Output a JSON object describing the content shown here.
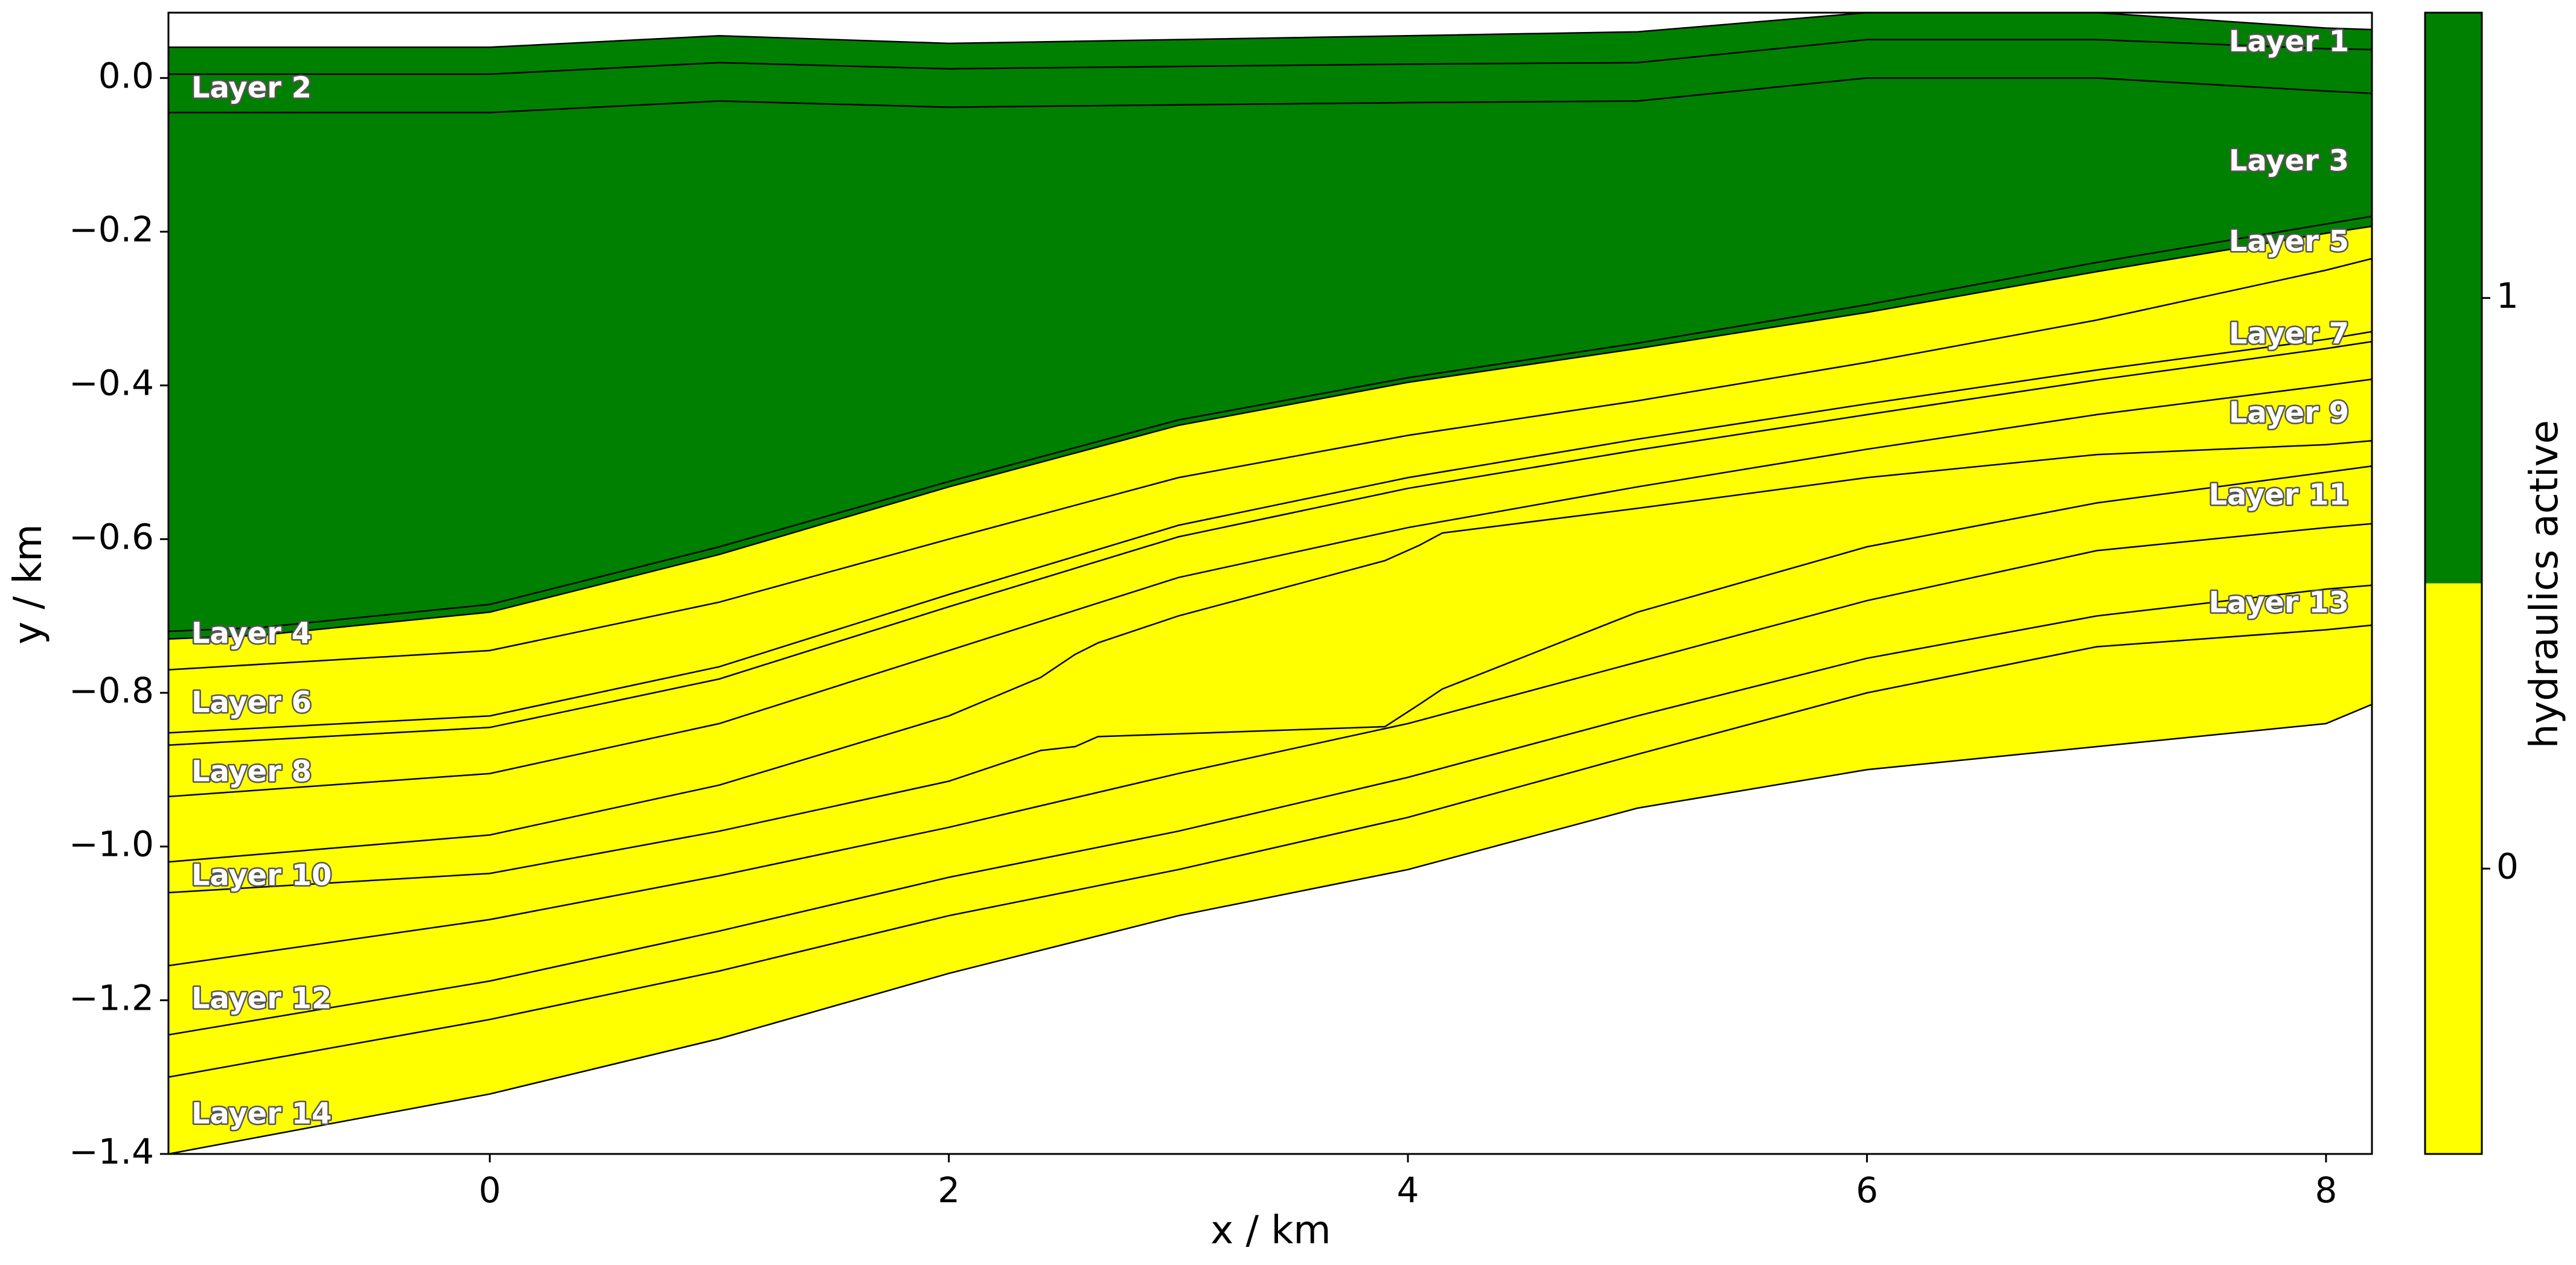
{
  "chart_data": {
    "type": "area",
    "title": "",
    "xlabel": "x / km",
    "ylabel": "y / km",
    "xlim": [
      -1.4,
      8.2
    ],
    "ylim": [
      -1.4,
      0.085
    ],
    "xticks": [
      0,
      2,
      4,
      6,
      8
    ],
    "yticks": [
      0.0,
      -0.2,
      -0.4,
      -0.6,
      -0.8,
      -1.0,
      -1.2,
      -1.4
    ],
    "xtick_labels": [
      "0",
      "2",
      "4",
      "6",
      "8"
    ],
    "ytick_labels": [
      "0.0",
      "−0.2",
      "−0.4",
      "−0.6",
      "−0.8",
      "−1.0",
      "−1.2",
      "−1.4"
    ],
    "grid": false,
    "colors": {
      "active": "#008000",
      "inactive": "#ffff00"
    },
    "colorbar": {
      "label": "hydraulics active",
      "ticks": [
        1,
        0
      ],
      "tick_labels": [
        "1",
        "0"
      ],
      "range": [
        -0.5,
        1.5
      ],
      "boundary": 0.5
    },
    "boundaries": [
      {
        "x": [
          -1.4,
          0,
          1,
          2,
          3,
          4,
          5,
          6,
          7,
          8,
          8.2
        ],
        "y": [
          0.04,
          0.04,
          0.055,
          0.045,
          0.05,
          0.055,
          0.06,
          0.085,
          0.085,
          0.065,
          0.063
        ]
      },
      {
        "x": [
          -1.4,
          0,
          1,
          2,
          3,
          4,
          5,
          6,
          7,
          8,
          8.2
        ],
        "y": [
          0.005,
          0.005,
          0.02,
          0.012,
          0.015,
          0.018,
          0.02,
          0.05,
          0.05,
          0.038,
          0.037
        ]
      },
      {
        "x": [
          -1.4,
          0,
          1,
          2,
          3,
          4,
          5,
          6,
          7,
          8,
          8.2
        ],
        "y": [
          -0.045,
          -0.045,
          -0.03,
          -0.038,
          -0.035,
          -0.032,
          -0.03,
          0.0,
          0.0,
          -0.017,
          -0.02
        ]
      },
      {
        "x": [
          -1.4,
          -1.0,
          0,
          1,
          2,
          3,
          4,
          5,
          6,
          7,
          8,
          8.2
        ],
        "y": [
          -0.72,
          -0.715,
          -0.685,
          -0.61,
          -0.525,
          -0.445,
          -0.39,
          -0.345,
          -0.295,
          -0.24,
          -0.19,
          -0.18
        ]
      },
      {
        "x": [
          -1.4,
          -1.0,
          0,
          1,
          2,
          3,
          4,
          5,
          6,
          7,
          8,
          8.2
        ],
        "y": [
          -0.73,
          -0.725,
          -0.695,
          -0.62,
          -0.532,
          -0.452,
          -0.396,
          -0.352,
          -0.305,
          -0.252,
          -0.202,
          -0.193
        ]
      },
      {
        "x": [
          -1.4,
          0,
          1,
          2,
          3,
          4,
          5,
          6,
          7,
          8,
          8.2
        ],
        "y": [
          -0.77,
          -0.745,
          -0.682,
          -0.6,
          -0.52,
          -0.465,
          -0.42,
          -0.37,
          -0.315,
          -0.25,
          -0.235
        ]
      },
      {
        "x": [
          -1.4,
          0,
          1,
          2,
          3,
          4,
          5,
          6,
          7,
          8,
          8.2
        ],
        "y": [
          -0.852,
          -0.83,
          -0.766,
          -0.672,
          -0.582,
          -0.52,
          -0.47,
          -0.424,
          -0.38,
          -0.34,
          -0.33
        ]
      },
      {
        "x": [
          -1.4,
          0,
          1,
          2,
          3,
          4,
          5,
          6,
          7,
          8,
          8.2
        ],
        "y": [
          -0.868,
          -0.845,
          -0.782,
          -0.688,
          -0.597,
          -0.534,
          -0.484,
          -0.438,
          -0.393,
          -0.352,
          -0.343
        ]
      },
      {
        "x": [
          -1.4,
          0,
          1,
          2,
          3,
          4,
          5,
          6,
          7,
          8,
          8.2
        ],
        "y": [
          -0.935,
          -0.905,
          -0.84,
          -0.745,
          -0.65,
          -0.585,
          -0.532,
          -0.483,
          -0.438,
          -0.4,
          -0.392
        ]
      },
      {
        "x": [
          -1.4,
          0,
          1,
          2,
          2.4,
          2.55,
          2.65,
          3,
          3.5,
          3.9,
          4.05,
          4.15,
          5,
          6,
          7,
          8,
          8.2
        ],
        "y": [
          -1.02,
          -0.985,
          -0.92,
          -0.83,
          -0.78,
          -0.75,
          -0.735,
          -0.7,
          -0.66,
          -0.628,
          -0.608,
          -0.592,
          -0.56,
          -0.52,
          -0.49,
          -0.477,
          -0.472
        ]
      },
      {
        "x": [
          -1.4,
          0,
          1,
          2,
          2.4,
          2.55,
          2.65,
          3.9,
          4.05,
          4.15,
          5,
          6,
          7,
          8,
          8.2
        ],
        "y": [
          -1.06,
          -1.035,
          -0.98,
          -0.915,
          -0.875,
          -0.87,
          -0.857,
          -0.844,
          -0.815,
          -0.795,
          -0.695,
          -0.61,
          -0.553,
          -0.513,
          -0.505
        ]
      },
      {
        "x": [
          -1.4,
          0,
          1,
          2,
          3,
          4,
          5,
          6,
          7,
          8,
          8.2
        ],
        "y": [
          -1.155,
          -1.095,
          -1.038,
          -0.975,
          -0.905,
          -0.84,
          -0.76,
          -0.68,
          -0.615,
          -0.585,
          -0.58
        ]
      },
      {
        "x": [
          -1.4,
          0,
          1,
          2,
          3,
          4,
          5,
          6,
          7,
          8,
          8.2
        ],
        "y": [
          -1.245,
          -1.175,
          -1.11,
          -1.04,
          -0.98,
          -0.91,
          -0.83,
          -0.755,
          -0.7,
          -0.665,
          -0.66
        ]
      },
      {
        "x": [
          -1.4,
          0,
          1,
          2,
          3,
          4,
          5,
          6,
          7,
          8,
          8.2
        ],
        "y": [
          -1.3,
          -1.225,
          -1.162,
          -1.09,
          -1.03,
          -0.962,
          -0.88,
          -0.8,
          -0.74,
          -0.718,
          -0.712
        ]
      },
      {
        "x": [
          -1.4,
          0,
          1,
          2,
          3,
          4,
          5,
          6,
          7,
          8,
          8.2
        ],
        "y": [
          -1.4,
          -1.322,
          -1.25,
          -1.165,
          -1.09,
          -1.03,
          -0.95,
          -0.9,
          -0.87,
          -0.84,
          -0.815
        ]
      }
    ],
    "layers": [
      {
        "name": "Layer 1",
        "top": 0,
        "bottom": 1,
        "hydraulics_active": 1
      },
      {
        "name": "Layer 2",
        "top": 1,
        "bottom": 2,
        "hydraulics_active": 1
      },
      {
        "name": "Layer 3",
        "top": 2,
        "bottom": 3,
        "hydraulics_active": 1
      },
      {
        "name": "Layer 4",
        "top": 3,
        "bottom": 4,
        "hydraulics_active": 1
      },
      {
        "name": "Layer 5",
        "top": 4,
        "bottom": 5,
        "hydraulics_active": 0
      },
      {
        "name": "Layer 6",
        "top": 5,
        "bottom": 6,
        "hydraulics_active": 0
      },
      {
        "name": "Layer 7",
        "top": 6,
        "bottom": 7,
        "hydraulics_active": 0
      },
      {
        "name": "Layer 8",
        "top": 7,
        "bottom": 8,
        "hydraulics_active": 0
      },
      {
        "name": "Layer 9",
        "top": 8,
        "bottom": 9,
        "hydraulics_active": 0
      },
      {
        "name": "Layer 10",
        "top": 9,
        "bottom": 10,
        "hydraulics_active": 0
      },
      {
        "name": "Layer 11",
        "top": 10,
        "bottom": 11,
        "hydraulics_active": 0
      },
      {
        "name": "Layer 12",
        "top": 11,
        "bottom": 12,
        "hydraulics_active": 0
      },
      {
        "name": "Layer 13",
        "top": 12,
        "bottom": 13,
        "hydraulics_active": 0
      },
      {
        "name": "Layer 14",
        "top": 13,
        "bottom": 14,
        "hydraulics_active": 0
      }
    ],
    "layer_labels": [
      {
        "text": "Layer 1",
        "side": "right",
        "y": 0.045
      },
      {
        "text": "Layer 2",
        "side": "left",
        "y": -0.015
      },
      {
        "text": "Layer 3",
        "side": "right",
        "y": -0.11
      },
      {
        "text": "Layer 4",
        "side": "left",
        "y": -0.725
      },
      {
        "text": "Layer 5",
        "side": "right",
        "y": -0.215
      },
      {
        "text": "Layer 6",
        "side": "left",
        "y": -0.815
      },
      {
        "text": "Layer 7",
        "side": "right",
        "y": -0.335
      },
      {
        "text": "Layer 8",
        "side": "left",
        "y": -0.905
      },
      {
        "text": "Layer 9",
        "side": "right",
        "y": -0.438
      },
      {
        "text": "Layer 10",
        "side": "left",
        "y": -1.04
      },
      {
        "text": "Layer 11",
        "side": "right",
        "y": -0.545
      },
      {
        "text": "Layer 12",
        "side": "left",
        "y": -1.2
      },
      {
        "text": "Layer 13",
        "side": "right",
        "y": -0.685
      },
      {
        "text": "Layer 14",
        "side": "left",
        "y": -1.35
      }
    ]
  }
}
